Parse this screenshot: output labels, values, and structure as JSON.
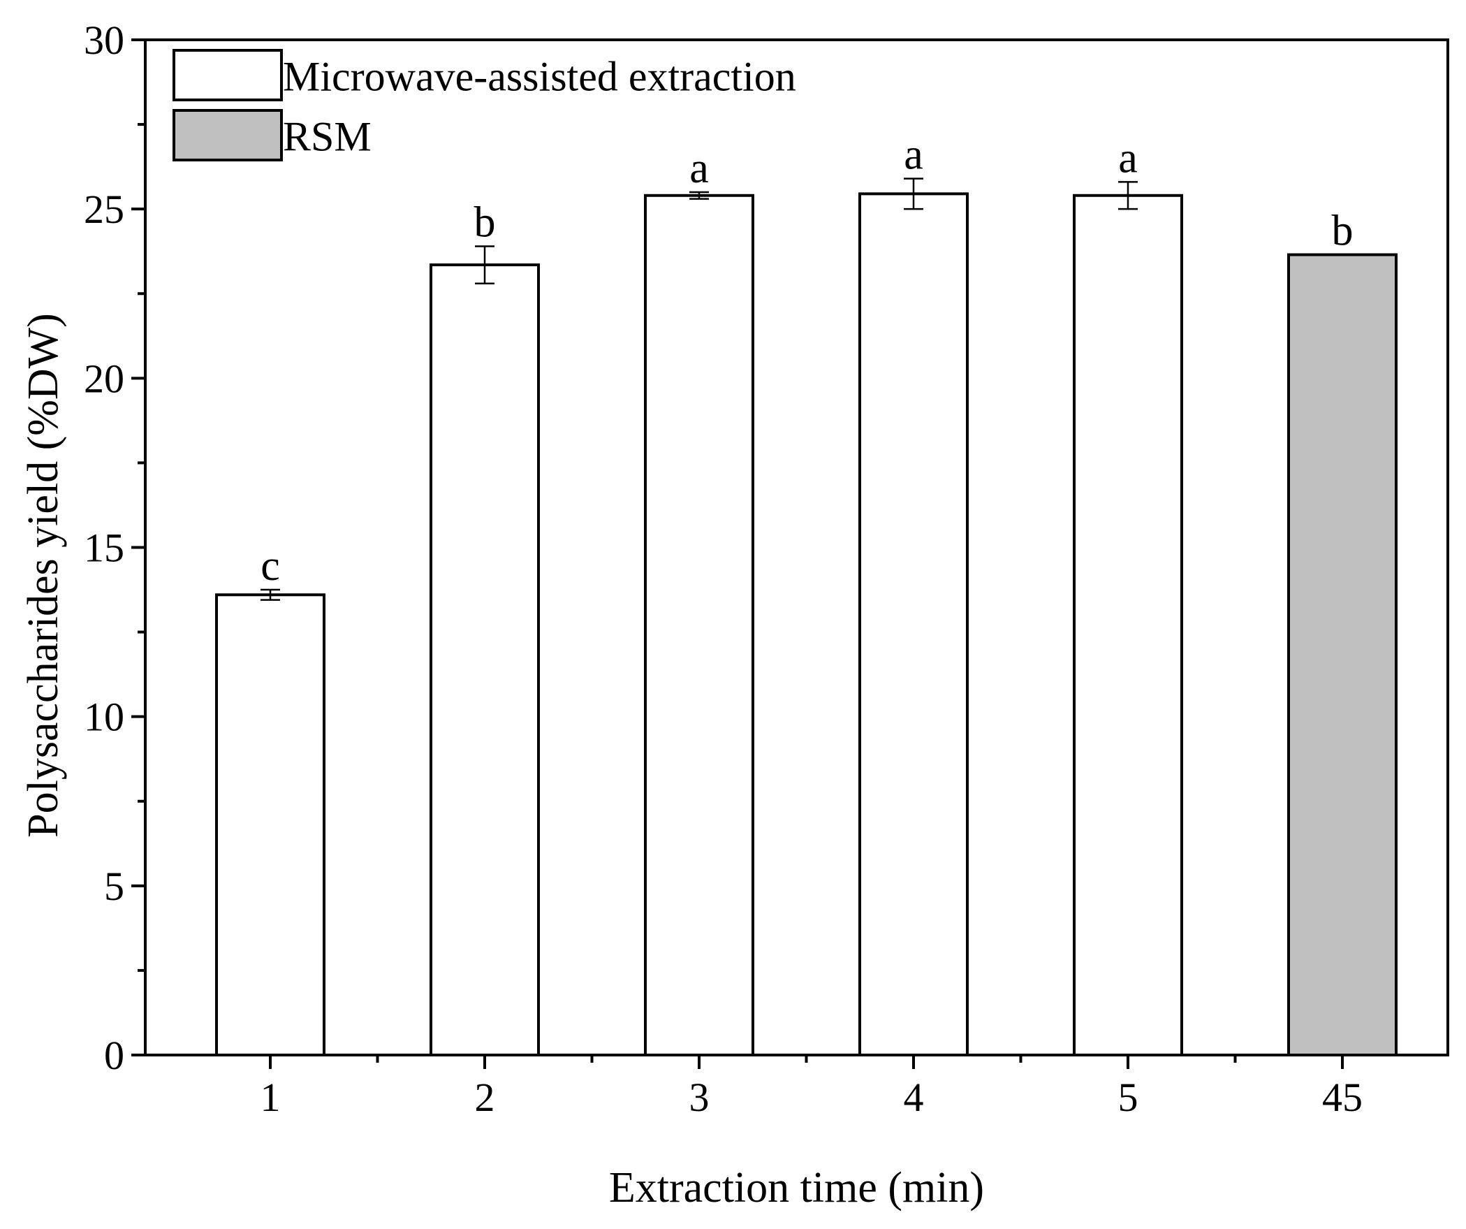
{
  "chart_data": {
    "type": "bar",
    "categories": [
      "1",
      "2",
      "3",
      "4",
      "5",
      "45"
    ],
    "values": [
      13.6,
      23.35,
      25.4,
      25.45,
      25.4,
      23.65
    ],
    "errors": [
      0.15,
      0.55,
      0.1,
      0.45,
      0.4,
      0.0
    ],
    "groups": [
      "microwave",
      "microwave",
      "microwave",
      "microwave",
      "microwave",
      "rsm"
    ],
    "significance": [
      "c",
      "b",
      "a",
      "a",
      "a",
      "b"
    ],
    "xlabel": "Extraction time (min)",
    "ylabel": "Polysaccharides yield (%DW)",
    "ylim": [
      0,
      30
    ],
    "yticks": [
      0,
      5,
      10,
      15,
      20,
      25,
      30
    ],
    "grid": false,
    "legend_position": "top-left",
    "legend": [
      {
        "key": "microwave",
        "label": "Microwave-assisted extraction",
        "color": "#ffffff"
      },
      {
        "key": "rsm",
        "label": "RSM",
        "color": "#c0c0c0"
      }
    ],
    "colors": {
      "microwave": "#ffffff",
      "rsm": "#c0c0c0",
      "stroke": "#000000"
    }
  }
}
